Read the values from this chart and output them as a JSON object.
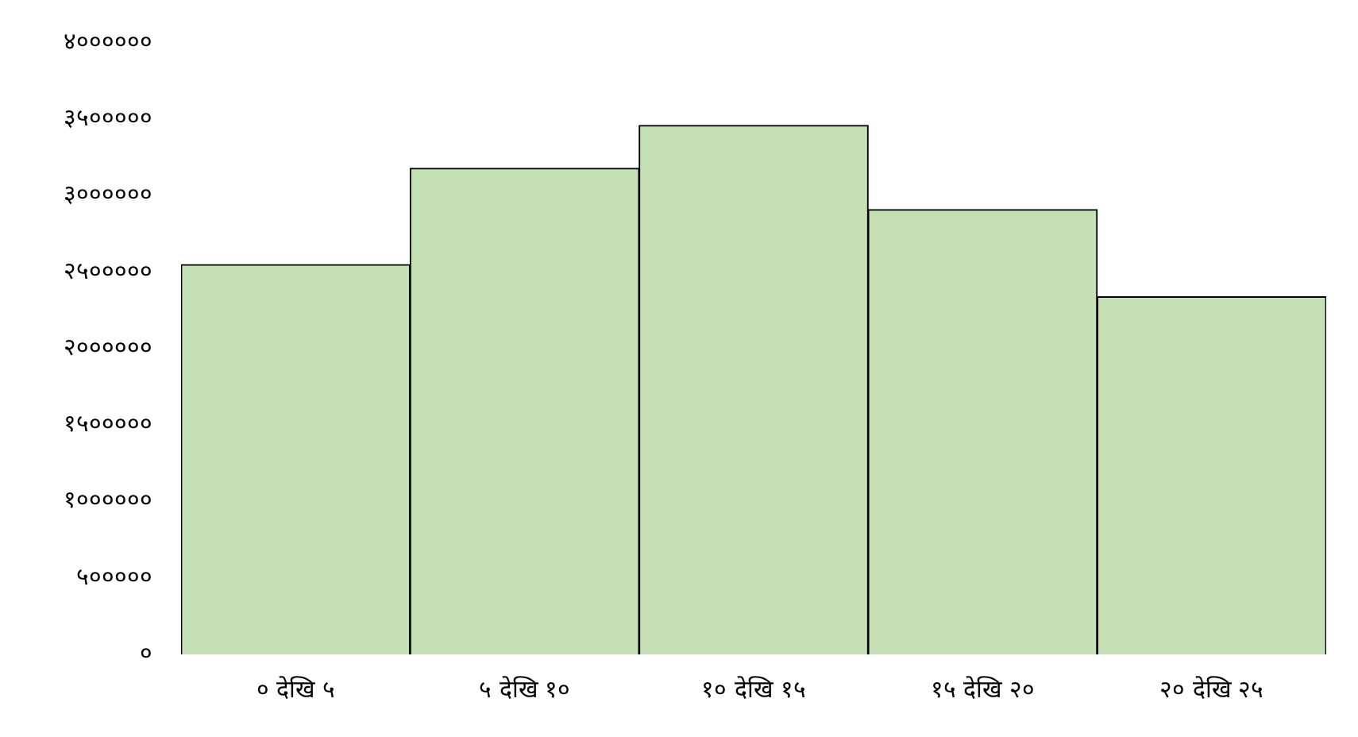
{
  "chart_data": {
    "type": "histogram",
    "categories": [
      "० देखि ५",
      "५ देखि १०",
      "१० देखि १५",
      "१५ देखि २०",
      "२० देखि २५"
    ],
    "values": [
      2550000,
      3180000,
      3460000,
      2910000,
      2340000
    ],
    "color": "#c5e0b4",
    "ylim": [
      0,
      4000000
    ],
    "yticks": [
      {
        "value": 0,
        "label": "०"
      },
      {
        "value": 500000,
        "label": "५०००००"
      },
      {
        "value": 1000000,
        "label": "१००००००"
      },
      {
        "value": 1500000,
        "label": "१५०००००"
      },
      {
        "value": 2000000,
        "label": "२००००००"
      },
      {
        "value": 2500000,
        "label": "२५०००००"
      },
      {
        "value": 3000000,
        "label": "३००००००"
      },
      {
        "value": 3500000,
        "label": "३५०००००"
      },
      {
        "value": 4000000,
        "label": "४००००००"
      }
    ],
    "grid": false,
    "legend": false
  }
}
